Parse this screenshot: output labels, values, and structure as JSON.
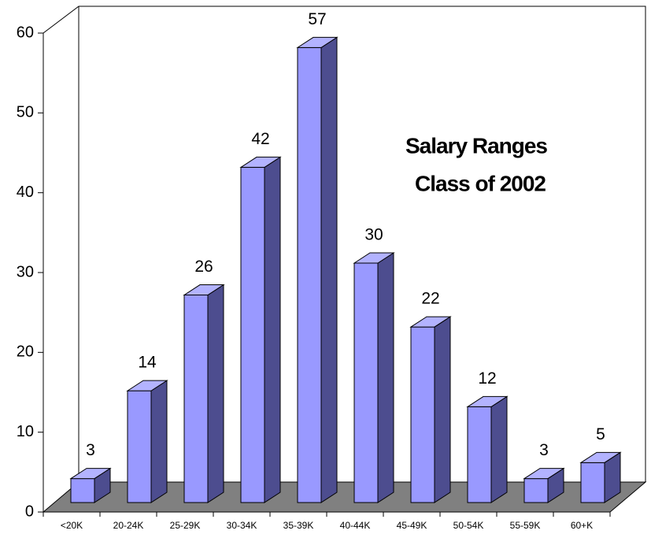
{
  "chart_data": {
    "type": "bar3d",
    "title": [
      "Salary Ranges",
      "Class of 2002"
    ],
    "categories": [
      "<20K",
      "20-24K",
      "25-29K",
      "30-34K",
      "35-39K",
      "40-44K",
      "45-49K",
      "50-54K",
      "55-59K",
      "60+K"
    ],
    "values": [
      3,
      14,
      26,
      42,
      57,
      30,
      22,
      12,
      3,
      5
    ],
    "color": "#9999ff",
    "ylim": [
      0,
      60
    ],
    "yticks": [
      0,
      10,
      20,
      30,
      40,
      50,
      60
    ]
  }
}
